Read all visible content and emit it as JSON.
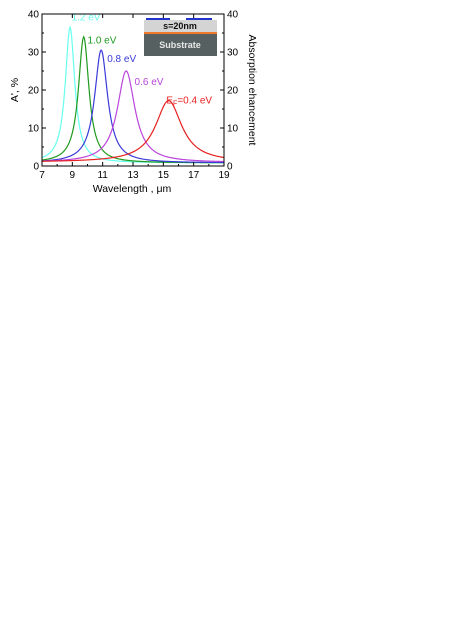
{
  "chart_data": {
    "type": "line",
    "title": "",
    "xlabel": "Wavelength , μm",
    "ylabel_left": "A', %",
    "ylabel_right": "Absorption ehancement",
    "xlim": [
      7,
      19
    ],
    "ylim": [
      0,
      40
    ],
    "xticks": [
      7,
      9,
      11,
      13,
      15,
      17,
      19
    ],
    "yticks": [
      0,
      10,
      20,
      30,
      40
    ],
    "grid": false,
    "series": [
      {
        "label": "1.2 eV",
        "color": "#66ffee",
        "peak_x": 8.85,
        "peak_y": 36.5,
        "width": 0.38,
        "baseline": 0.8,
        "label_x": 8.95,
        "label_y": 38.3
      },
      {
        "label": "1.0 eV",
        "color": "#1f9a1f",
        "peak_x": 9.75,
        "peak_y": 34.0,
        "width": 0.42,
        "baseline": 0.8,
        "label_x": 10.0,
        "label_y": 32.3
      },
      {
        "label": "0.8 eV",
        "color": "#3a3ad8",
        "peak_x": 10.9,
        "peak_y": 30.5,
        "width": 0.52,
        "baseline": 0.8,
        "label_x": 11.3,
        "label_y": 27.4
      },
      {
        "label": "0.6 eV",
        "color": "#bb44dd",
        "peak_x": 12.55,
        "peak_y": 25.0,
        "width": 0.7,
        "baseline": 0.9,
        "label_x": 13.1,
        "label_y": 21.3
      },
      {
        "label_prefix": "E",
        "label_sub": "F",
        "label": "=0.4 eV",
        "color": "#e82020",
        "peak_x": 15.35,
        "peak_y": 17.2,
        "width": 1.05,
        "baseline": 1.0,
        "label_x": 15.2,
        "label_y": 16.5
      }
    ],
    "inset": {
      "top_label": "s=20nm",
      "substrate_label": "Substrate"
    }
  }
}
